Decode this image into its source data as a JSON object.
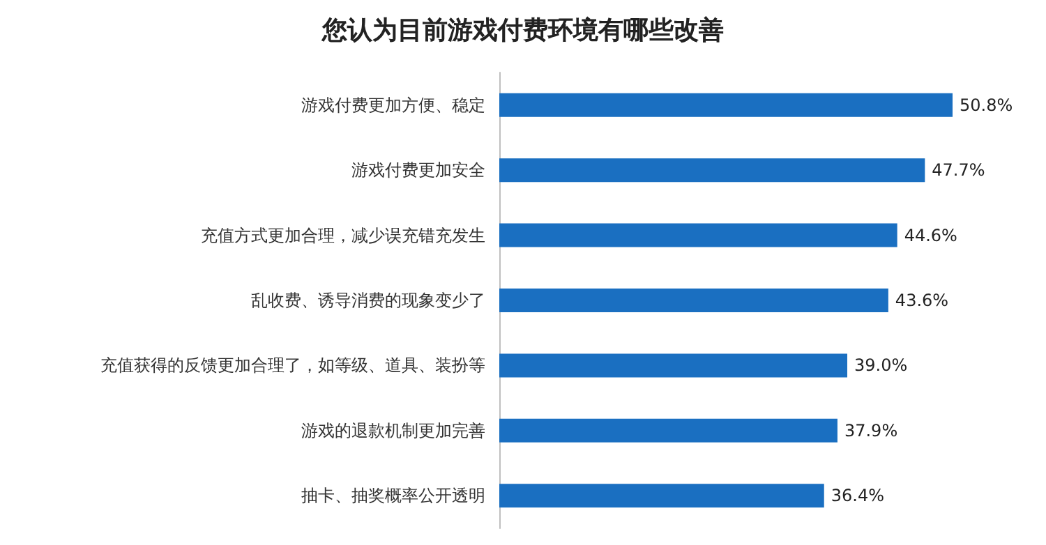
{
  "chart_data": {
    "type": "bar",
    "orientation": "horizontal",
    "title": "您认为目前游戏付费环境有哪些改善",
    "categories": [
      "游戏付费更加方便、稳定",
      "游戏付费更加安全",
      "充值方式更加合理，减少误充错充发生",
      "乱收费、诱导消费的现象变少了",
      "充值获得的反馈更加合理了，如等级、道具、装扮等",
      "游戏的退款机制更加完善",
      "抽卡、抽奖概率公开透明"
    ],
    "values": [
      50.8,
      47.7,
      44.6,
      43.6,
      39.0,
      37.9,
      36.4
    ],
    "value_labels": [
      "50.8%",
      "47.7%",
      "44.6%",
      "43.6%",
      "39.0%",
      "37.9%",
      "36.4%"
    ],
    "color": "#1a6fc1",
    "tick_labels": "y"
  }
}
